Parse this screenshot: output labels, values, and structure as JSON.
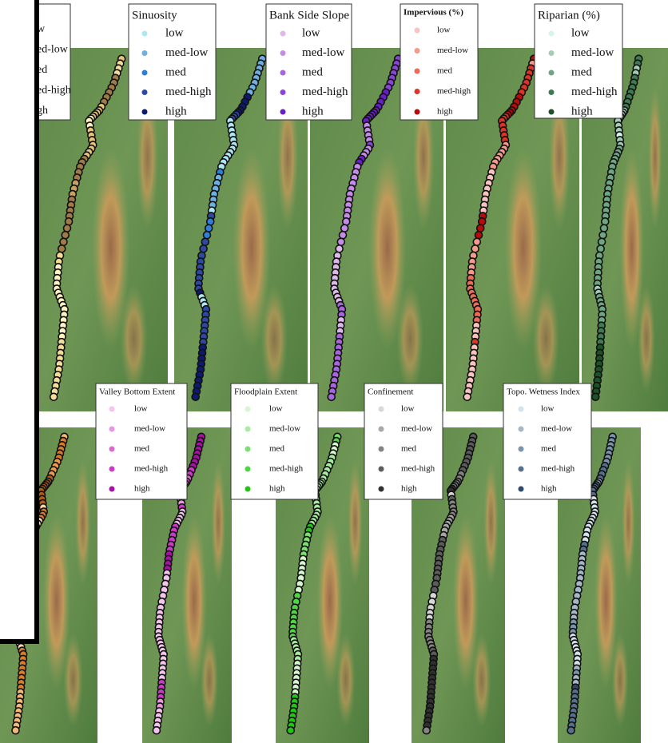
{
  "top_row": {
    "legends": [
      {
        "items": [
          {
            "label": "w",
            "color": "#fff3c4"
          },
          {
            "label": "ed-low",
            "color": "#f4dc9a"
          },
          {
            "label": "ed",
            "color": "#e6c27a"
          },
          {
            "label": "ed-high",
            "color": "#c9a062"
          },
          {
            "label": "gh",
            "color": "#a07a48"
          }
        ]
      },
      {
        "title": "Sinuosity",
        "items": [
          {
            "label": "low",
            "color": "#aee6f2"
          },
          {
            "label": "med-low",
            "color": "#6eb0e2"
          },
          {
            "label": "med",
            "color": "#2f7fd8"
          },
          {
            "label": "med-high",
            "color": "#2c4aa4"
          },
          {
            "label": "high",
            "color": "#0c1a70"
          }
        ]
      },
      {
        "title": "Bank Side Slope",
        "items": [
          {
            "label": "low",
            "color": "#ddb8ea"
          },
          {
            "label": "med-low",
            "color": "#c48ce8"
          },
          {
            "label": "med",
            "color": "#a865e0"
          },
          {
            "label": "med-high",
            "color": "#8a44d8"
          },
          {
            "label": "high",
            "color": "#6a1ec8"
          }
        ]
      },
      {
        "title": "Impervious (%)",
        "items": [
          {
            "label": "low",
            "color": "#f8c4c0"
          },
          {
            "label": "med-low",
            "color": "#f49a8a"
          },
          {
            "label": "med",
            "color": "#ee6a58"
          },
          {
            "label": "med-high",
            "color": "#dc3426"
          },
          {
            "label": "high",
            "color": "#b80c0c"
          }
        ]
      },
      {
        "title": "Riparian (%)",
        "items": [
          {
            "label": "low",
            "color": "#d8f2ec"
          },
          {
            "label": "med-low",
            "color": "#a4ccb8"
          },
          {
            "label": "med",
            "color": "#6ea684"
          },
          {
            "label": "med-high",
            "color": "#3e7a52"
          },
          {
            "label": "high",
            "color": "#1c5228"
          }
        ]
      }
    ]
  },
  "bottom_row": {
    "legends": [
      {
        "title": "Valley Bottom Extent",
        "items": [
          {
            "label": "low",
            "color": "#f4c4ec"
          },
          {
            "label": "med-low",
            "color": "#ea96e0"
          },
          {
            "label": "med",
            "color": "#dc68d6"
          },
          {
            "label": "med-high",
            "color": "#c93cc4"
          },
          {
            "label": "high",
            "color": "#a810a8"
          }
        ]
      },
      {
        "title": "Floodplain Extent",
        "items": [
          {
            "label": "low",
            "color": "#d6f6d0"
          },
          {
            "label": "med-low",
            "color": "#a8eca0"
          },
          {
            "label": "med",
            "color": "#7ce070"
          },
          {
            "label": "med-high",
            "color": "#50d444"
          },
          {
            "label": "high",
            "color": "#22c418"
          }
        ]
      },
      {
        "title": "Confinement",
        "items": [
          {
            "label": "low",
            "color": "#d8d8d8"
          },
          {
            "label": "med-low",
            "color": "#a8a8a8"
          },
          {
            "label": "med",
            "color": "#848484"
          },
          {
            "label": "med-high",
            "color": "#5c5c5c"
          },
          {
            "label": "high",
            "color": "#303030"
          }
        ]
      },
      {
        "title": "Topo. Wetness Index",
        "items": [
          {
            "label": "low",
            "color": "#d4e2ea"
          },
          {
            "label": "med-low",
            "color": "#a4b8c8"
          },
          {
            "label": "med",
            "color": "#7a94ae"
          },
          {
            "label": "med-high",
            "color": "#56708e"
          },
          {
            "label": "high",
            "color": "#2e4a6e"
          }
        ]
      }
    ]
  }
}
